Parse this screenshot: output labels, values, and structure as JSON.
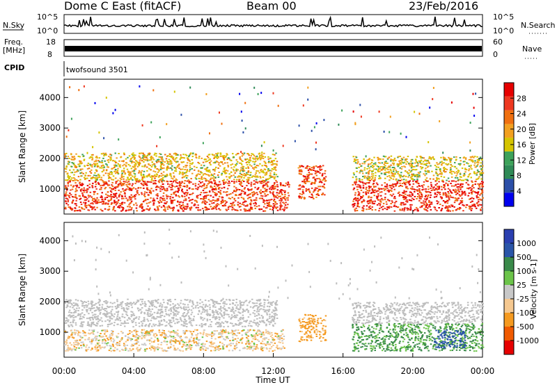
{
  "header": {
    "station": "Dome C East (fitACF)",
    "beam": "Beam 00",
    "date": "23/Feb/2016"
  },
  "strip": {
    "nsky_label": "N.Sky",
    "nsky_ticks": [
      "10^5",
      "10^0"
    ],
    "nsearch_label": "N.Search",
    "freq_label_1": "Freq.",
    "freq_label_2": "[MHz]",
    "freq_ticks": [
      "18",
      "8"
    ],
    "nave_label": "Nave",
    "nave_ticks": [
      "60",
      "0"
    ],
    "cpid_label": "CPID",
    "cpid_value": "twofsound 3501"
  },
  "colors": {
    "power_scale": [
      "#0000ee",
      "#2c4fa8",
      "#2f8a57",
      "#3da25a",
      "#d5c400",
      "#f2a020",
      "#f07010",
      "#ee3820",
      "#e60000"
    ],
    "velocity_scale": [
      "#e60000",
      "#f05a00",
      "#f59a20",
      "#f5c890",
      "#c8c8c8",
      "#6cc44a",
      "#3a8a4a",
      "#2a55a8",
      "#2a3fb0"
    ],
    "gray_scatter": "#bdbdbd"
  },
  "chart_data": [
    {
      "type": "heatmap",
      "title": "",
      "xlabel": "Time UT",
      "ylabel": "Slant Range [km]",
      "x_ticks": [
        "00:00",
        "04:00",
        "08:00",
        "12:00",
        "16:00",
        "20:00",
        "00:00"
      ],
      "y_ticks": [
        "1000",
        "2000",
        "3000",
        "4000"
      ],
      "ylim": [
        180,
        4600
      ],
      "colorbar": {
        "label": "Power [dB]",
        "ticks": [
          "4",
          "8",
          "12",
          "16",
          "20",
          "24",
          "28"
        ],
        "range": [
          0,
          30
        ]
      },
      "echo_regions": [
        {
          "t_start": 0.0,
          "t_end": 12.9,
          "r_start": 300,
          "r_end": 1300,
          "value": 26
        },
        {
          "t_start": 0.0,
          "t_end": 12.2,
          "r_start": 1300,
          "r_end": 2200,
          "value": 17
        },
        {
          "t_start": 13.4,
          "t_end": 15.0,
          "r_start": 700,
          "r_end": 1800,
          "value": 25
        },
        {
          "t_start": 16.5,
          "t_end": 24.0,
          "r_start": 300,
          "r_end": 1300,
          "value": 27
        },
        {
          "t_start": 16.5,
          "t_end": 24.0,
          "r_start": 1300,
          "r_end": 2100,
          "value": 16
        }
      ]
    },
    {
      "type": "heatmap",
      "title": "",
      "xlabel": "Time UT",
      "ylabel": "Slant Range [km]",
      "x_ticks": [
        "00:00",
        "04:00",
        "08:00",
        "12:00",
        "16:00",
        "20:00",
        "00:00"
      ],
      "y_ticks": [
        "1000",
        "2000",
        "3000",
        "4000"
      ],
      "ylim": [
        180,
        4600
      ],
      "colorbar": {
        "label": "Velocity [m s-1]",
        "ticks": [
          "1000",
          "500",
          "100",
          "25",
          "-25",
          "-100",
          "-500",
          "-1000"
        ],
        "range": [
          -1000,
          1000
        ]
      },
      "echo_regions": [
        {
          "t_start": 0.0,
          "t_end": 12.6,
          "r_start": 400,
          "r_end": 1100,
          "value": -50
        },
        {
          "t_start": 0.0,
          "t_end": 12.2,
          "r_start": 1200,
          "r_end": 2100,
          "value": 0
        },
        {
          "t_start": 13.4,
          "t_end": 15.0,
          "r_start": 700,
          "r_end": 1600,
          "value": -150
        },
        {
          "t_start": 16.5,
          "t_end": 24.0,
          "r_start": 400,
          "r_end": 1300,
          "value": 120
        },
        {
          "t_start": 21.2,
          "t_end": 23.0,
          "r_start": 500,
          "r_end": 1100,
          "value": 600
        },
        {
          "t_start": 16.5,
          "t_end": 24.0,
          "r_start": 1300,
          "r_end": 2000,
          "value": 0
        }
      ]
    }
  ]
}
